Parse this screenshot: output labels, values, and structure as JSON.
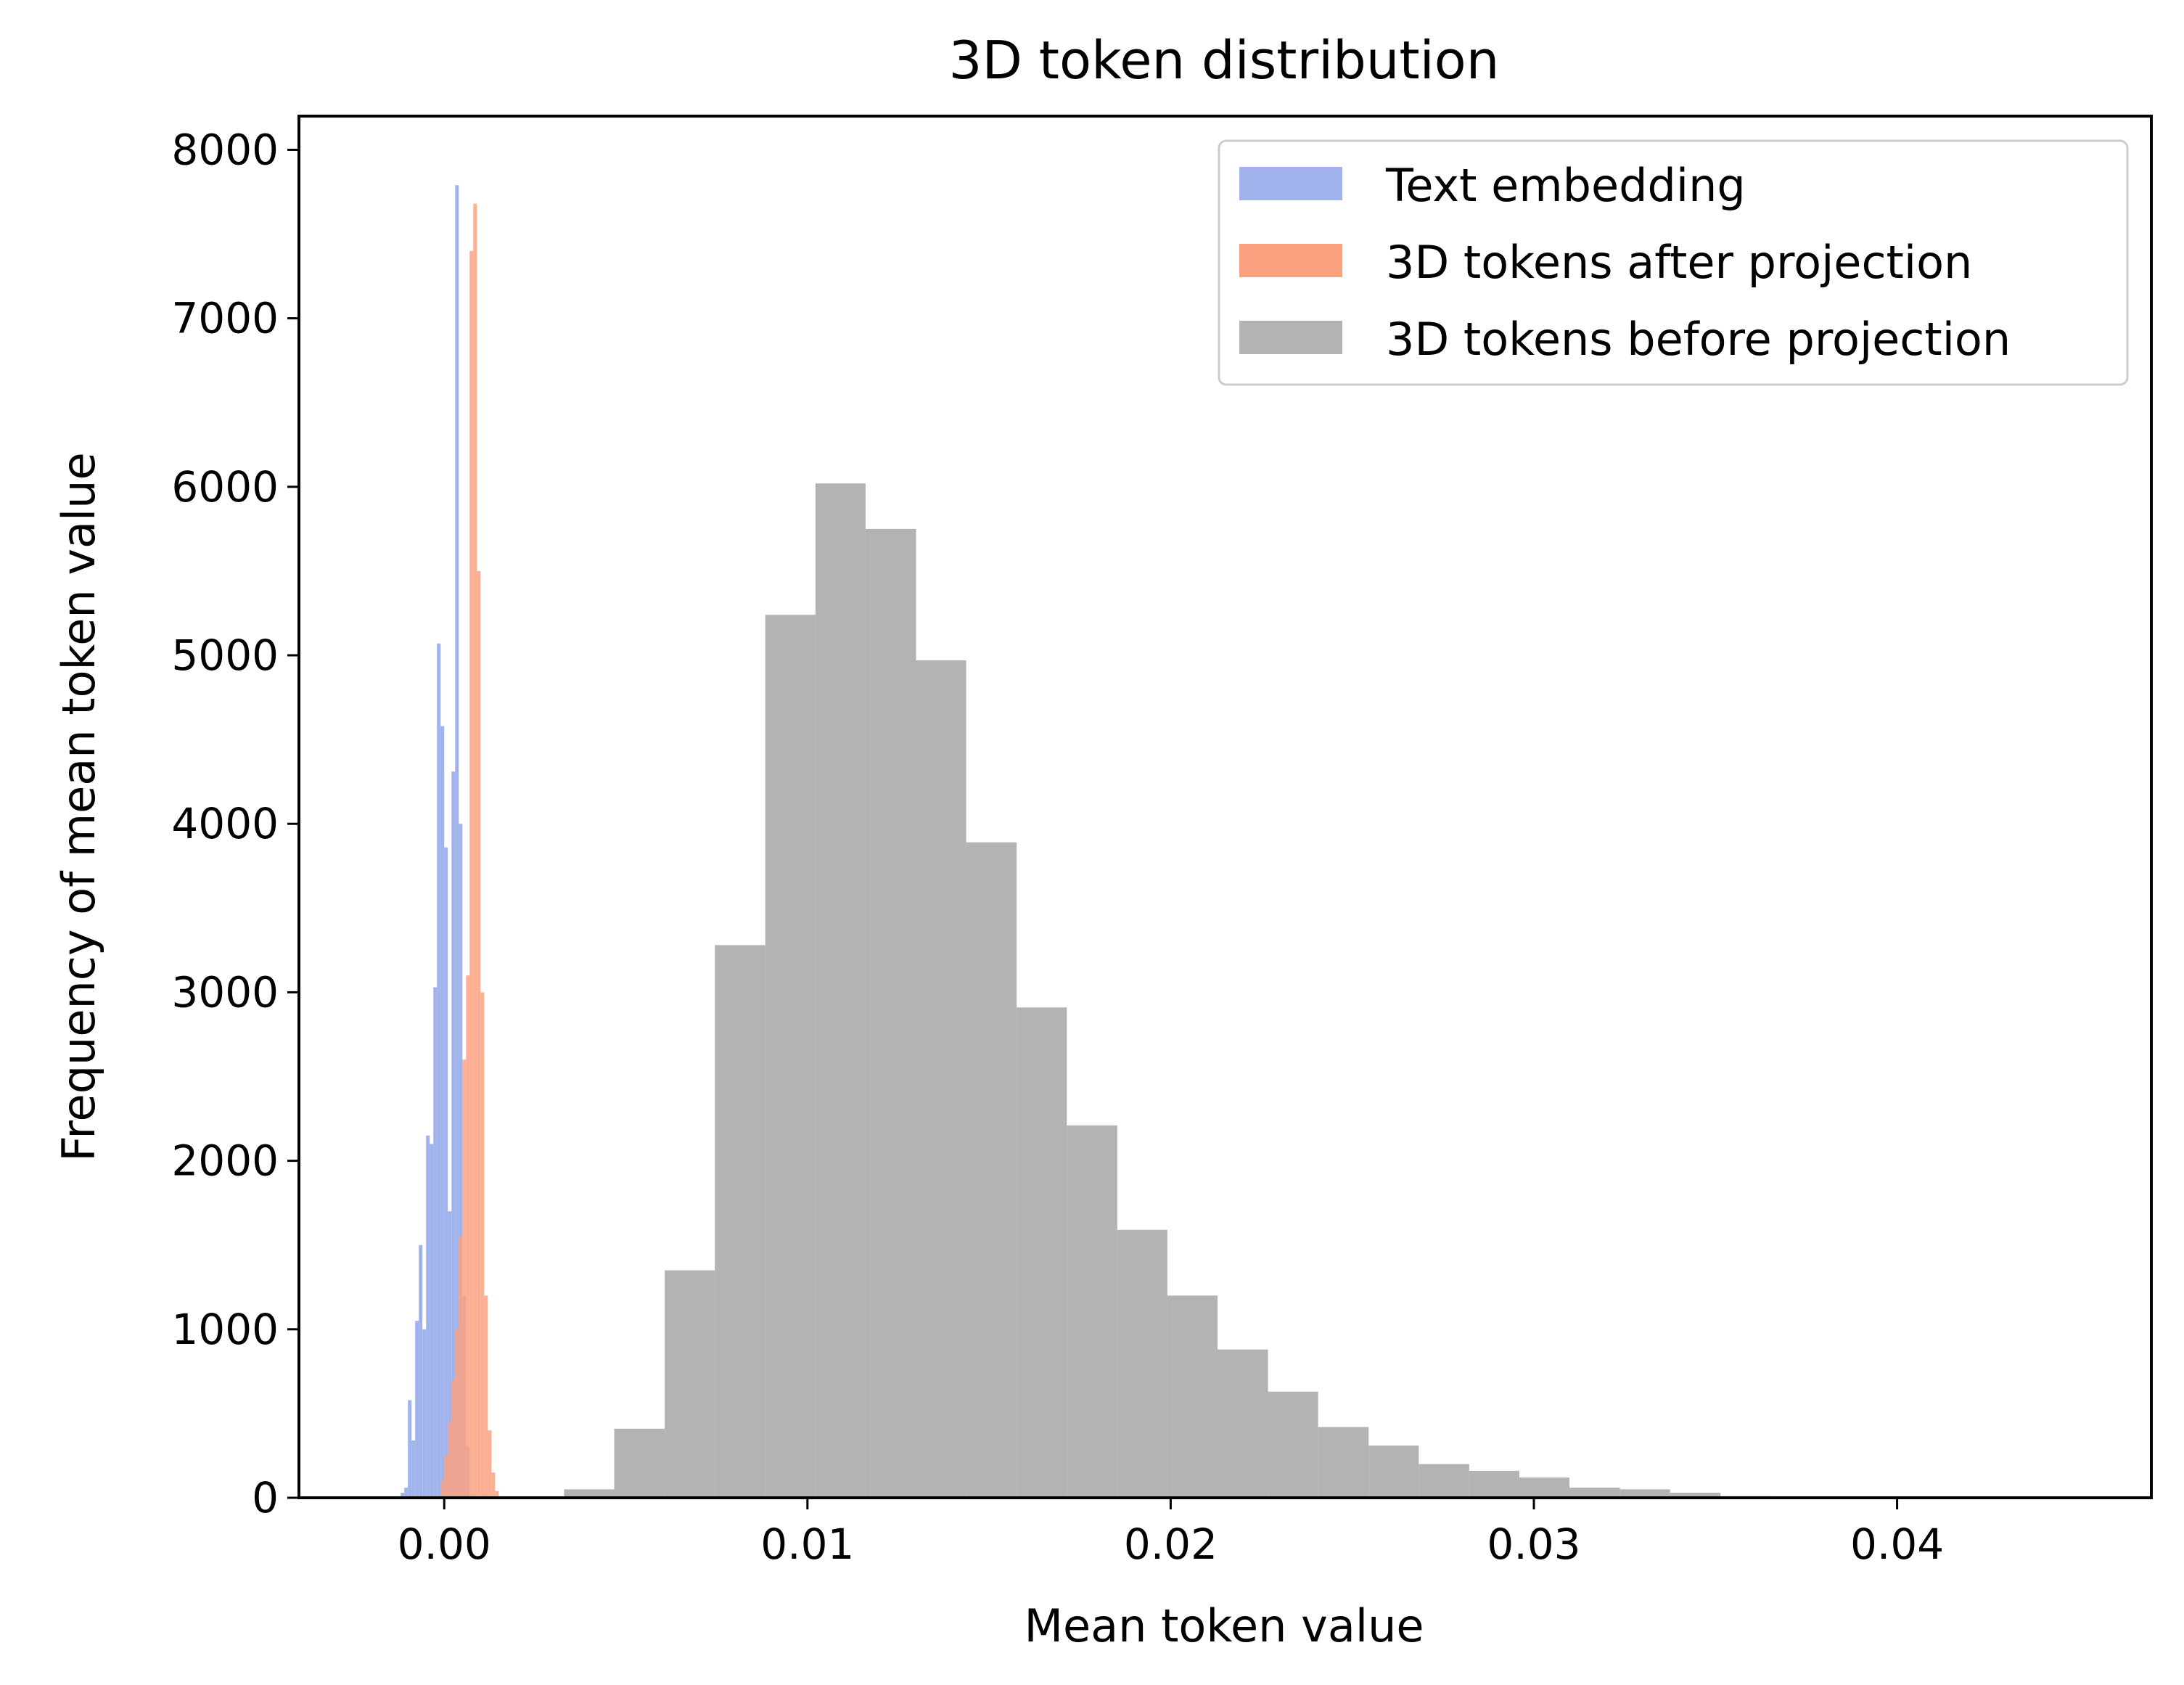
{
  "chart_data": {
    "type": "bar",
    "title": "3D token distribution",
    "xlabel": "Mean token value",
    "ylabel": "Frequency of mean token value",
    "xlim": [
      -0.004,
      0.047
    ],
    "ylim": [
      0,
      8200
    ],
    "x_ticks": [
      {
        "value": 0.0,
        "label": "0.00"
      },
      {
        "value": 0.01,
        "label": "0.01"
      },
      {
        "value": 0.02,
        "label": "0.02"
      },
      {
        "value": 0.03,
        "label": "0.03"
      },
      {
        "value": 0.04,
        "label": "0.04"
      }
    ],
    "y_ticks": [
      {
        "value": 0,
        "label": "0"
      },
      {
        "value": 1000,
        "label": "1000"
      },
      {
        "value": 2000,
        "label": "2000"
      },
      {
        "value": 3000,
        "label": "3000"
      },
      {
        "value": 4000,
        "label": "4000"
      },
      {
        "value": 5000,
        "label": "5000"
      },
      {
        "value": 6000,
        "label": "6000"
      },
      {
        "value": 7000,
        "label": "7000"
      },
      {
        "value": 8000,
        "label": "8000"
      }
    ],
    "grid": false,
    "legend_position": "top-right",
    "series": [
      {
        "name": "3D tokens before projection",
        "color": "#b3b3b3",
        "bins": [
          {
            "x0": 0.0033,
            "x1": 0.00468,
            "value": 50
          },
          {
            "x0": 0.00468,
            "x1": 0.00607,
            "value": 410
          },
          {
            "x0": 0.00607,
            "x1": 0.00745,
            "value": 1350
          },
          {
            "x0": 0.00745,
            "x1": 0.00884,
            "value": 3280
          },
          {
            "x0": 0.00884,
            "x1": 0.01022,
            "value": 5240
          },
          {
            "x0": 0.01022,
            "x1": 0.0116,
            "value": 6020
          },
          {
            "x0": 0.0116,
            "x1": 0.01299,
            "value": 5750
          },
          {
            "x0": 0.01299,
            "x1": 0.01437,
            "value": 4970
          },
          {
            "x0": 0.01437,
            "x1": 0.01576,
            "value": 3890
          },
          {
            "x0": 0.01576,
            "x1": 0.01714,
            "value": 2910
          },
          {
            "x0": 0.01714,
            "x1": 0.01853,
            "value": 2210
          },
          {
            "x0": 0.01853,
            "x1": 0.01991,
            "value": 1590
          },
          {
            "x0": 0.01991,
            "x1": 0.02129,
            "value": 1200
          },
          {
            "x0": 0.02129,
            "x1": 0.02268,
            "value": 880
          },
          {
            "x0": 0.02268,
            "x1": 0.02406,
            "value": 630
          },
          {
            "x0": 0.02406,
            "x1": 0.02545,
            "value": 420
          },
          {
            "x0": 0.02545,
            "x1": 0.02683,
            "value": 310
          },
          {
            "x0": 0.02683,
            "x1": 0.02822,
            "value": 200
          },
          {
            "x0": 0.02822,
            "x1": 0.0296,
            "value": 160
          },
          {
            "x0": 0.0296,
            "x1": 0.03098,
            "value": 120
          },
          {
            "x0": 0.03098,
            "x1": 0.03237,
            "value": 60
          },
          {
            "x0": 0.03237,
            "x1": 0.03375,
            "value": 50
          },
          {
            "x0": 0.03375,
            "x1": 0.03514,
            "value": 30
          },
          {
            "x0": 0.03514,
            "x1": 0.03652,
            "value": 10
          },
          {
            "x0": 0.03652,
            "x1": 0.03791,
            "value": 5
          },
          {
            "x0": 0.03791,
            "x1": 0.03929,
            "value": 3
          },
          {
            "x0": 0.03929,
            "x1": 0.04067,
            "value": 2
          },
          {
            "x0": 0.04067,
            "x1": 0.04206,
            "value": 1
          },
          {
            "x0": 0.04206,
            "x1": 0.04344,
            "value": 1
          },
          {
            "x0": 0.04344,
            "x1": 0.04483,
            "value": 1
          }
        ]
      },
      {
        "name": "Text embedding",
        "color": "#a1b3ec",
        "bins": [
          {
            "x0": -0.0012,
            "x1": -0.0011,
            "value": 30
          },
          {
            "x0": -0.0011,
            "x1": -0.001,
            "value": 60
          },
          {
            "x0": -0.001,
            "x1": -0.0009,
            "value": 580
          },
          {
            "x0": -0.0009,
            "x1": -0.0008,
            "value": 340
          },
          {
            "x0": -0.0008,
            "x1": -0.0007,
            "value": 1050
          },
          {
            "x0": -0.0007,
            "x1": -0.0006,
            "value": 1500
          },
          {
            "x0": -0.0006,
            "x1": -0.0005,
            "value": 1000
          },
          {
            "x0": -0.0005,
            "x1": -0.0004,
            "value": 2150
          },
          {
            "x0": -0.0004,
            "x1": -0.0003,
            "value": 2100
          },
          {
            "x0": -0.0003,
            "x1": -0.0002,
            "value": 3030
          },
          {
            "x0": -0.0002,
            "x1": -0.0001,
            "value": 5070
          },
          {
            "x0": -0.0001,
            "x1": 0.0,
            "value": 4580
          },
          {
            "x0": 0.0,
            "x1": 0.0001,
            "value": 3860
          },
          {
            "x0": 0.0001,
            "x1": 0.0002,
            "value": 1700
          },
          {
            "x0": 0.0002,
            "x1": 0.0003,
            "value": 4310
          },
          {
            "x0": 0.0003,
            "x1": 0.0004,
            "value": 7790
          },
          {
            "x0": 0.0004,
            "x1": 0.0005,
            "value": 4000
          },
          {
            "x0": 0.0005,
            "x1": 0.0006,
            "value": 1200
          },
          {
            "x0": 0.0006,
            "x1": 0.0007,
            "value": 300
          }
        ]
      },
      {
        "name": "3D tokens after projection",
        "color": "#fca180",
        "bins": [
          {
            "x0": -0.0001,
            "x1": 0.0,
            "value": 100
          },
          {
            "x0": 0.0,
            "x1": 0.0001,
            "value": 250
          },
          {
            "x0": 0.0001,
            "x1": 0.0002,
            "value": 450
          },
          {
            "x0": 0.0002,
            "x1": 0.0003,
            "value": 700
          },
          {
            "x0": 0.0003,
            "x1": 0.0004,
            "value": 1000
          },
          {
            "x0": 0.0004,
            "x1": 0.0005,
            "value": 1550
          },
          {
            "x0": 0.0005,
            "x1": 0.0006,
            "value": 2600
          },
          {
            "x0": 0.0006,
            "x1": 0.0007,
            "value": 3100
          },
          {
            "x0": 0.0007,
            "x1": 0.0008,
            "value": 7400
          },
          {
            "x0": 0.0008,
            "x1": 0.0009,
            "value": 7680
          },
          {
            "x0": 0.0009,
            "x1": 0.001,
            "value": 5500
          },
          {
            "x0": 0.001,
            "x1": 0.0011,
            "value": 3000
          },
          {
            "x0": 0.0011,
            "x1": 0.0012,
            "value": 1200
          },
          {
            "x0": 0.0012,
            "x1": 0.0013,
            "value": 400
          },
          {
            "x0": 0.0013,
            "x1": 0.0014,
            "value": 150
          },
          {
            "x0": 0.0014,
            "x1": 0.0015,
            "value": 40
          }
        ]
      }
    ],
    "legend": [
      {
        "label": "Text embedding",
        "color": "#a1b3ec"
      },
      {
        "label": "3D tokens after projection",
        "color": "#fca180"
      },
      {
        "label": "3D tokens before projection",
        "color": "#b3b3b3"
      }
    ]
  }
}
